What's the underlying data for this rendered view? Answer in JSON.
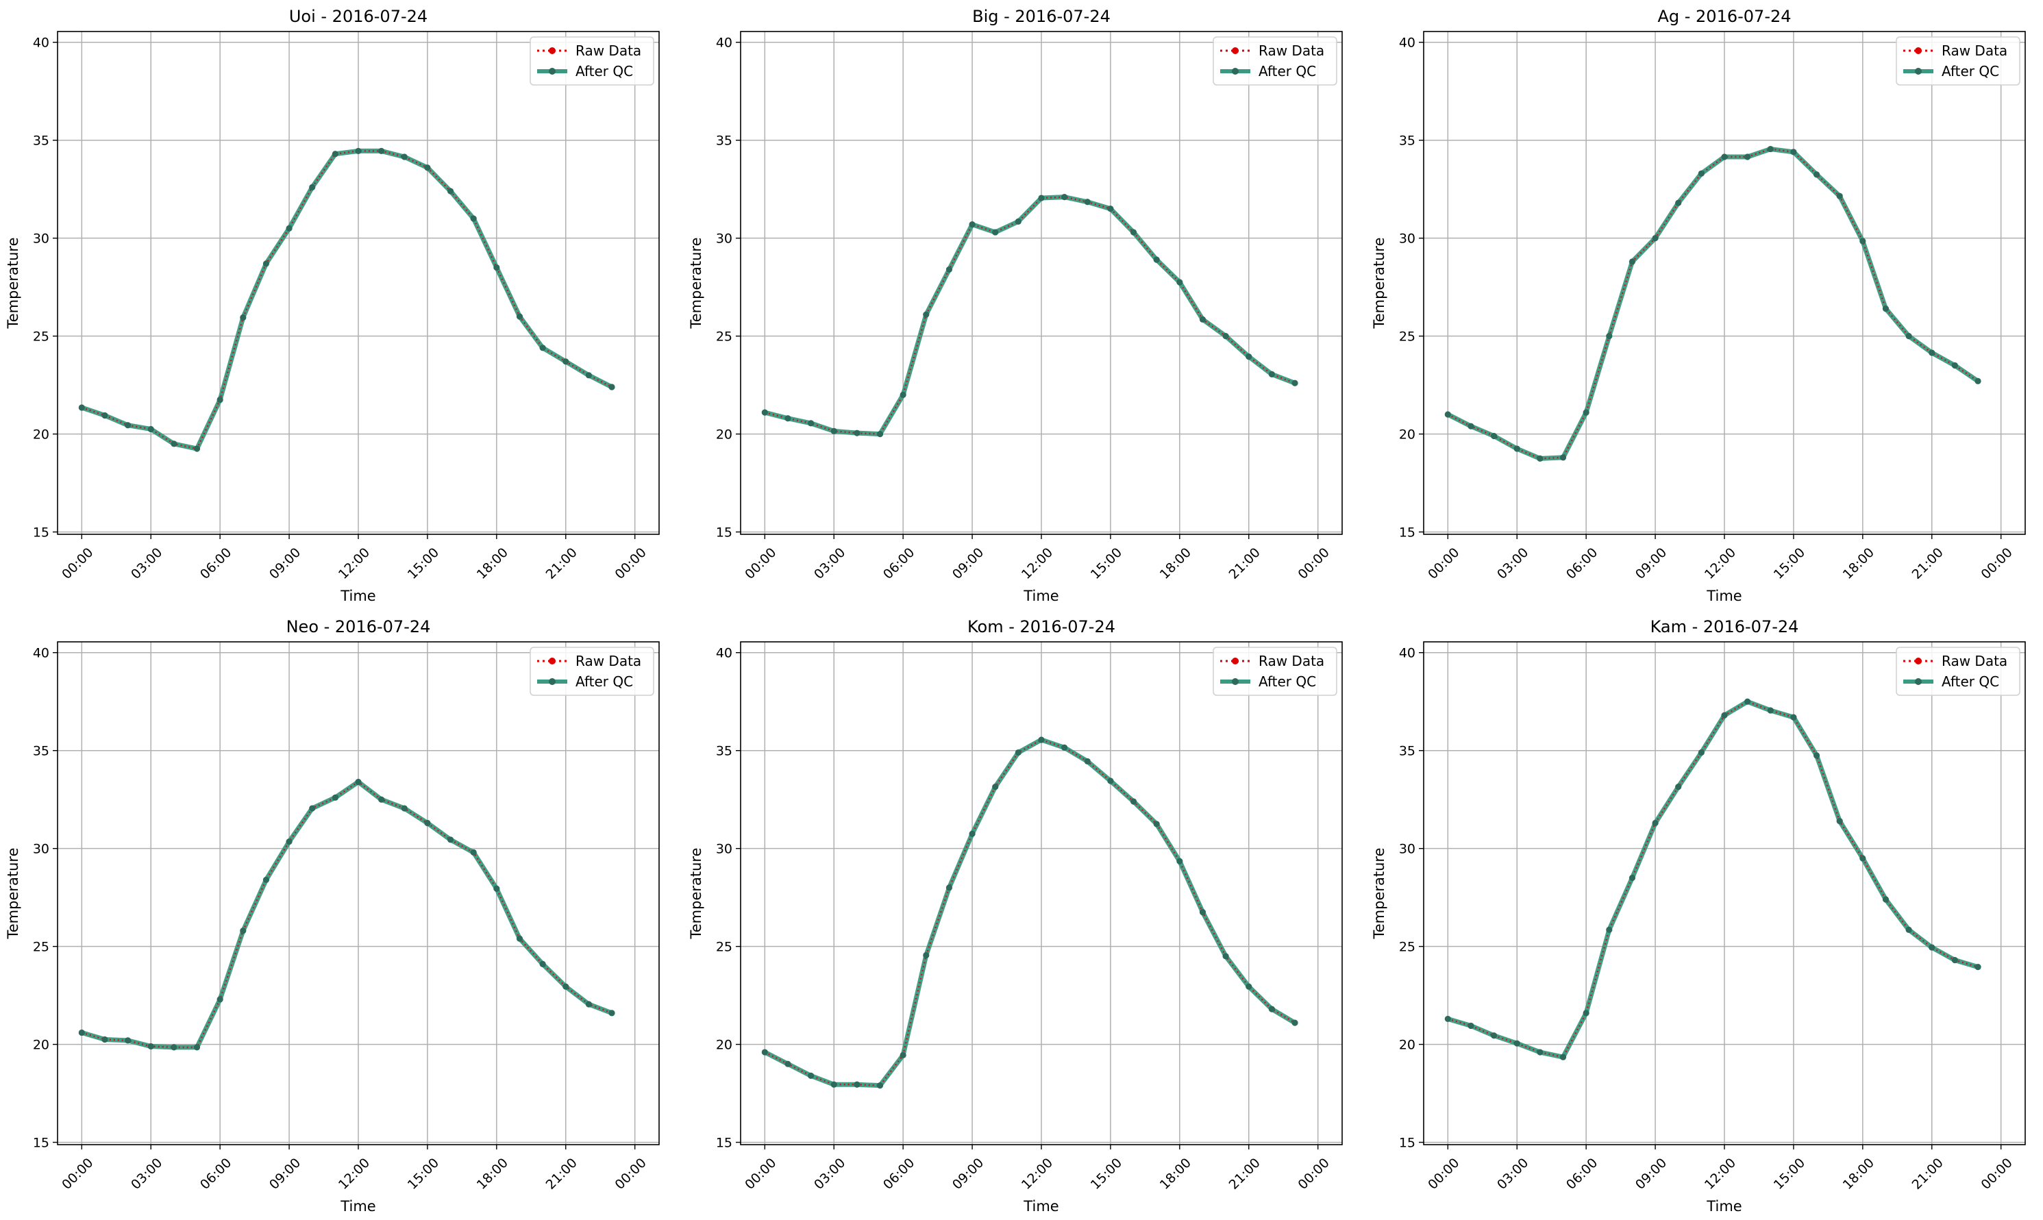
{
  "figure": {
    "legend_labels": [
      "Raw Data",
      "After QC"
    ]
  },
  "chart_data": [
    {
      "type": "line",
      "title": "Uoi - 2016-07-24",
      "xlabel": "Time",
      "ylabel": "Temperature",
      "xticks": [
        "00:00",
        "03:00",
        "06:00",
        "09:00",
        "12:00",
        "15:00",
        "18:00",
        "21:00",
        "00:00"
      ],
      "yticks": [
        15,
        20,
        25,
        30,
        35,
        40
      ],
      "ylim": [
        15,
        40
      ],
      "xlim_hours": [
        0,
        24
      ],
      "grid": true,
      "legend_position": "top-right",
      "x_hours": [
        0,
        1,
        2,
        3,
        4,
        5,
        6,
        7,
        8,
        9,
        10,
        11,
        12,
        13,
        14,
        15,
        16,
        17,
        18,
        19,
        20,
        21,
        22,
        23
      ],
      "series": [
        {
          "name": "Raw Data",
          "values": [
            21.35,
            20.95,
            20.45,
            20.25,
            19.5,
            19.25,
            21.75,
            25.95,
            28.7,
            30.5,
            32.6,
            34.3,
            34.45,
            34.45,
            34.15,
            33.6,
            32.4,
            31.0,
            28.5,
            26.0,
            24.4,
            23.7,
            23.0,
            22.4
          ]
        },
        {
          "name": "After QC",
          "values": [
            21.35,
            20.95,
            20.45,
            20.25,
            19.5,
            19.25,
            21.75,
            25.95,
            28.7,
            30.5,
            32.6,
            34.3,
            34.45,
            34.45,
            34.15,
            33.6,
            32.4,
            31.0,
            28.5,
            26.0,
            24.4,
            23.7,
            23.0,
            22.4
          ]
        }
      ]
    },
    {
      "type": "line",
      "title": "Big - 2016-07-24",
      "xlabel": "Time",
      "ylabel": "Temperature",
      "xticks": [
        "00:00",
        "03:00",
        "06:00",
        "09:00",
        "12:00",
        "15:00",
        "18:00",
        "21:00",
        "00:00"
      ],
      "yticks": [
        15,
        20,
        25,
        30,
        35,
        40
      ],
      "ylim": [
        15,
        40
      ],
      "xlim_hours": [
        0,
        24
      ],
      "grid": true,
      "legend_position": "top-right",
      "x_hours": [
        0,
        1,
        2,
        3,
        4,
        5,
        6,
        7,
        8,
        9,
        10,
        11,
        12,
        13,
        14,
        15,
        16,
        17,
        18,
        19,
        20,
        21,
        22,
        23
      ],
      "series": [
        {
          "name": "Raw Data",
          "values": [
            21.1,
            20.8,
            20.55,
            20.15,
            20.05,
            20.0,
            22.0,
            26.1,
            28.4,
            30.7,
            30.3,
            30.85,
            32.05,
            32.1,
            31.85,
            31.5,
            30.3,
            28.9,
            27.75,
            25.85,
            25.0,
            23.95,
            23.05,
            22.6
          ]
        },
        {
          "name": "After QC",
          "values": [
            21.1,
            20.8,
            20.55,
            20.15,
            20.05,
            20.0,
            22.0,
            26.1,
            28.4,
            30.7,
            30.3,
            30.85,
            32.05,
            32.1,
            31.85,
            31.5,
            30.3,
            28.9,
            27.75,
            25.85,
            25.0,
            23.95,
            23.05,
            22.6
          ]
        }
      ]
    },
    {
      "type": "line",
      "title": "Ag - 2016-07-24",
      "xlabel": "Time",
      "ylabel": "Temperature",
      "xticks": [
        "00:00",
        "03:00",
        "06:00",
        "09:00",
        "12:00",
        "15:00",
        "18:00",
        "21:00",
        "00:00"
      ],
      "yticks": [
        15,
        20,
        25,
        30,
        35,
        40
      ],
      "ylim": [
        15,
        40
      ],
      "xlim_hours": [
        0,
        24
      ],
      "grid": true,
      "legend_position": "top-right",
      "x_hours": [
        0,
        1,
        2,
        3,
        4,
        5,
        6,
        7,
        8,
        9,
        10,
        11,
        12,
        13,
        14,
        15,
        16,
        17,
        18,
        19,
        20,
        21,
        22,
        23
      ],
      "series": [
        {
          "name": "Raw Data",
          "values": [
            21.0,
            20.4,
            19.9,
            19.25,
            18.75,
            18.8,
            21.1,
            25.0,
            28.8,
            30.0,
            31.8,
            33.3,
            34.15,
            34.15,
            34.55,
            34.4,
            33.25,
            32.15,
            29.85,
            26.4,
            25.0,
            24.15,
            23.5,
            22.7
          ]
        },
        {
          "name": "After QC",
          "values": [
            21.0,
            20.4,
            19.9,
            19.25,
            18.75,
            18.8,
            21.1,
            25.0,
            28.8,
            30.0,
            31.8,
            33.3,
            34.15,
            34.15,
            34.55,
            34.4,
            33.25,
            32.15,
            29.85,
            26.4,
            25.0,
            24.15,
            23.5,
            22.7
          ]
        }
      ]
    },
    {
      "type": "line",
      "title": "Neo - 2016-07-24",
      "xlabel": "Time",
      "ylabel": "Temperature",
      "xticks": [
        "00:00",
        "03:00",
        "06:00",
        "09:00",
        "12:00",
        "15:00",
        "18:00",
        "21:00",
        "00:00"
      ],
      "yticks": [
        15,
        20,
        25,
        30,
        35,
        40
      ],
      "ylim": [
        15,
        40
      ],
      "xlim_hours": [
        0,
        24
      ],
      "grid": true,
      "legend_position": "top-right",
      "x_hours": [
        0,
        1,
        2,
        3,
        4,
        5,
        6,
        7,
        8,
        9,
        10,
        11,
        12,
        13,
        14,
        15,
        16,
        17,
        18,
        19,
        20,
        21,
        22,
        23
      ],
      "series": [
        {
          "name": "Raw Data",
          "values": [
            20.6,
            20.25,
            20.2,
            19.9,
            19.85,
            19.85,
            22.3,
            25.8,
            28.4,
            30.35,
            32.05,
            32.6,
            33.4,
            32.5,
            32.05,
            31.3,
            30.45,
            29.8,
            27.95,
            25.4,
            24.1,
            22.95,
            22.05,
            21.6
          ]
        },
        {
          "name": "After QC",
          "values": [
            20.6,
            20.25,
            20.2,
            19.9,
            19.85,
            19.85,
            22.3,
            25.8,
            28.4,
            30.35,
            32.05,
            32.6,
            33.4,
            32.5,
            32.05,
            31.3,
            30.45,
            29.8,
            27.95,
            25.4,
            24.1,
            22.95,
            22.05,
            21.6
          ]
        }
      ]
    },
    {
      "type": "line",
      "title": "Kom - 2016-07-24",
      "xlabel": "Time",
      "ylabel": "Temperature",
      "xticks": [
        "00:00",
        "03:00",
        "06:00",
        "09:00",
        "12:00",
        "15:00",
        "18:00",
        "21:00",
        "00:00"
      ],
      "yticks": [
        15,
        20,
        25,
        30,
        35,
        40
      ],
      "ylim": [
        15,
        40
      ],
      "xlim_hours": [
        0,
        24
      ],
      "grid": true,
      "legend_position": "top-right",
      "x_hours": [
        0,
        1,
        2,
        3,
        4,
        5,
        6,
        7,
        8,
        9,
        10,
        11,
        12,
        13,
        14,
        15,
        16,
        17,
        18,
        19,
        20,
        21,
        22,
        23
      ],
      "series": [
        {
          "name": "Raw Data",
          "values": [
            19.6,
            19.0,
            18.4,
            17.95,
            17.95,
            17.9,
            19.45,
            24.55,
            28.0,
            30.75,
            33.15,
            34.9,
            35.55,
            35.15,
            34.45,
            33.45,
            32.4,
            31.25,
            29.35,
            26.75,
            24.5,
            22.95,
            21.8,
            21.1
          ]
        },
        {
          "name": "After QC",
          "values": [
            19.6,
            19.0,
            18.4,
            17.95,
            17.95,
            17.9,
            19.45,
            24.55,
            28.0,
            30.75,
            33.15,
            34.9,
            35.55,
            35.15,
            34.45,
            33.45,
            32.4,
            31.25,
            29.35,
            26.75,
            24.5,
            22.95,
            21.8,
            21.1
          ]
        }
      ]
    },
    {
      "type": "line",
      "title": "Kam - 2016-07-24",
      "xlabel": "Time",
      "ylabel": "Temperature",
      "xticks": [
        "00:00",
        "03:00",
        "06:00",
        "09:00",
        "12:00",
        "15:00",
        "18:00",
        "21:00",
        "00:00"
      ],
      "yticks": [
        15,
        20,
        25,
        30,
        35,
        40
      ],
      "ylim": [
        15,
        40
      ],
      "xlim_hours": [
        0,
        24
      ],
      "grid": true,
      "legend_position": "top-right",
      "x_hours": [
        0,
        1,
        2,
        3,
        4,
        5,
        6,
        7,
        8,
        9,
        10,
        11,
        12,
        13,
        14,
        15,
        16,
        17,
        18,
        19,
        20,
        21,
        22,
        23
      ],
      "series": [
        {
          "name": "Raw Data",
          "values": [
            21.3,
            20.95,
            20.45,
            20.05,
            19.6,
            19.35,
            21.6,
            25.85,
            28.5,
            31.3,
            33.15,
            34.9,
            36.8,
            37.5,
            37.05,
            36.7,
            34.75,
            31.4,
            29.5,
            27.4,
            25.85,
            24.95,
            24.3,
            23.95
          ]
        },
        {
          "name": "After QC",
          "values": [
            21.3,
            20.95,
            20.45,
            20.05,
            19.6,
            19.35,
            21.6,
            25.85,
            28.5,
            31.3,
            33.15,
            34.9,
            36.8,
            37.5,
            37.05,
            36.7,
            34.75,
            31.4,
            29.5,
            27.4,
            25.85,
            24.95,
            24.3,
            23.95
          ]
        }
      ]
    }
  ],
  "colors": {
    "raw": "#e00000",
    "qc_line": "#3a9a82",
    "qc_marker": "#2d6a5c",
    "grid": "#b0b0b0",
    "axis": "#000000"
  }
}
